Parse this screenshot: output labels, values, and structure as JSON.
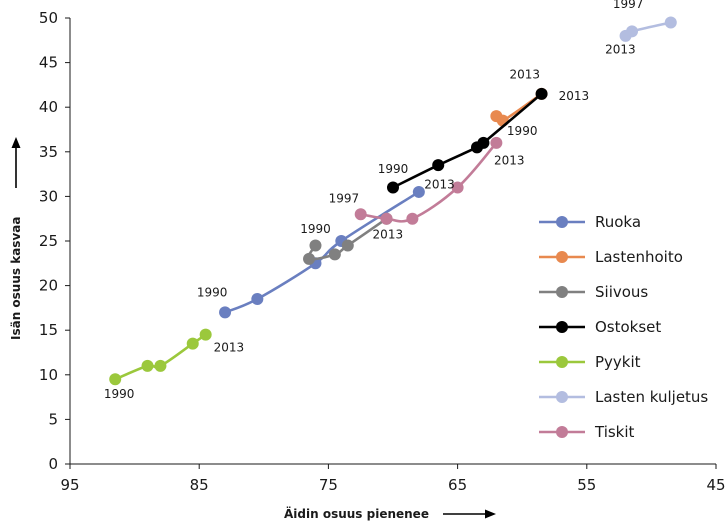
{
  "chart_data": {
    "type": "line",
    "xlabel": "Äidin osuus pienenee",
    "ylabel": "Isän osuus kasvaa",
    "xlim": [
      95,
      45
    ],
    "ylim": [
      0,
      50
    ],
    "x_ticks": [
      95,
      85,
      75,
      65,
      55,
      45
    ],
    "y_ticks": [
      0,
      5,
      10,
      15,
      20,
      25,
      30,
      35,
      40,
      45,
      50
    ],
    "x_reversed": true,
    "grid": false,
    "legend_position": "right",
    "series": [
      {
        "name": "Ruoka",
        "color": "#6a7fc0",
        "points": [
          {
            "x": 83.0,
            "y": 17.0
          },
          {
            "x": 80.5,
            "y": 18.5
          },
          {
            "x": 76.0,
            "y": 22.5
          },
          {
            "x": 74.0,
            "y": 25.0
          },
          {
            "x": 68.0,
            "y": 30.5
          }
        ]
      },
      {
        "name": "Lastenhoito",
        "color": "#e8894f",
        "points": [
          {
            "x": 62.0,
            "y": 39.0
          },
          {
            "x": 61.5,
            "y": 38.5
          },
          {
            "x": 58.5,
            "y": 41.5
          }
        ]
      },
      {
        "name": "Siivous",
        "color": "#808080",
        "points": [
          {
            "x": 76.0,
            "y": 24.5
          },
          {
            "x": 76.5,
            "y": 23.0
          },
          {
            "x": 74.5,
            "y": 23.5
          },
          {
            "x": 73.5,
            "y": 24.5
          },
          {
            "x": 70.5,
            "y": 27.5
          }
        ]
      },
      {
        "name": "Ostokset",
        "color": "#000000",
        "points": [
          {
            "x": 70.0,
            "y": 31.0
          },
          {
            "x": 66.5,
            "y": 33.5
          },
          {
            "x": 63.5,
            "y": 35.5
          },
          {
            "x": 63.0,
            "y": 36.0
          },
          {
            "x": 58.5,
            "y": 41.5
          }
        ]
      },
      {
        "name": "Pyykit",
        "color": "#9bc83c",
        "points": [
          {
            "x": 91.5,
            "y": 9.5
          },
          {
            "x": 89.0,
            "y": 11.0
          },
          {
            "x": 88.0,
            "y": 11.0
          },
          {
            "x": 85.5,
            "y": 13.5
          },
          {
            "x": 84.5,
            "y": 14.5
          }
        ]
      },
      {
        "name": "Lasten kuljetus",
        "color": "#b3bde0",
        "points": [
          {
            "x": 52.0,
            "y": 48.0
          },
          {
            "x": 51.5,
            "y": 48.5
          },
          {
            "x": 48.5,
            "y": 49.5
          }
        ]
      },
      {
        "name": "Tiskit",
        "color": "#c27c98",
        "points": [
          {
            "x": 72.5,
            "y": 28.0
          },
          {
            "x": 70.5,
            "y": 27.5
          },
          {
            "x": 68.5,
            "y": 27.5
          },
          {
            "x": 65.0,
            "y": 31.0
          },
          {
            "x": 62.0,
            "y": 36.0
          }
        ]
      }
    ],
    "annotations": [
      {
        "text": "1997",
        "x": 51.8,
        "y": 51.1,
        "anchor": "middle"
      },
      {
        "text": "2013",
        "x": 52.4,
        "y": 46.0,
        "anchor": "middle"
      },
      {
        "text": "2013",
        "x": 59.8,
        "y": 43.2,
        "anchor": "middle"
      },
      {
        "text": "2013",
        "x": 56.0,
        "y": 40.8,
        "anchor": "middle"
      },
      {
        "text": "1990",
        "x": 60.0,
        "y": 36.9,
        "anchor": "middle"
      },
      {
        "text": "2013",
        "x": 61.0,
        "y": 33.6,
        "anchor": "middle"
      },
      {
        "text": "1990",
        "x": 70.0,
        "y": 32.6,
        "anchor": "middle"
      },
      {
        "text": "2013",
        "x": 66.4,
        "y": 30.9,
        "anchor": "middle"
      },
      {
        "text": "1997",
        "x": 73.8,
        "y": 29.3,
        "anchor": "middle"
      },
      {
        "text": "2013",
        "x": 70.4,
        "y": 25.3,
        "anchor": "middle"
      },
      {
        "text": "1990",
        "x": 76.0,
        "y": 25.9,
        "anchor": "middle"
      },
      {
        "text": "1990",
        "x": 84.0,
        "y": 18.8,
        "anchor": "middle"
      },
      {
        "text": "2013",
        "x": 82.7,
        "y": 12.6,
        "anchor": "middle"
      },
      {
        "text": "1990",
        "x": 91.2,
        "y": 7.4,
        "anchor": "middle"
      }
    ]
  }
}
